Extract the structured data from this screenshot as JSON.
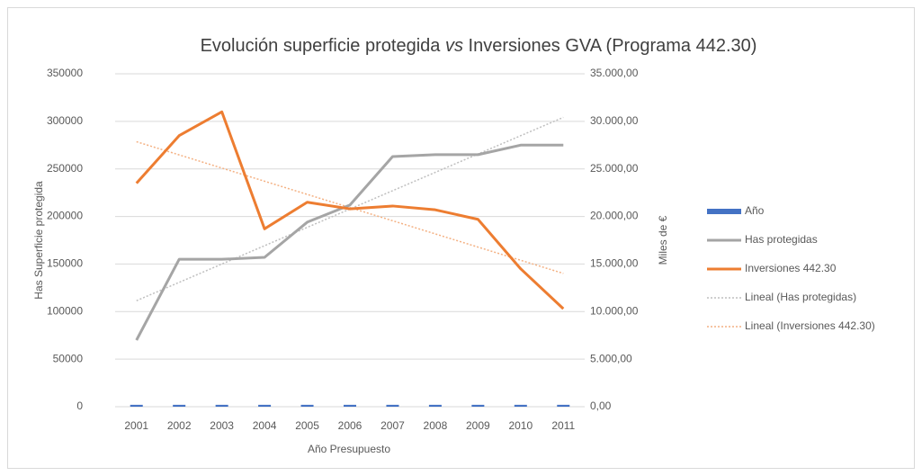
{
  "chart_data": {
    "type": "line",
    "title": {
      "before": "Evolución superficie protegida",
      "emphasis": "vs",
      "after": "Inversiones GVA (Programa 442.30)"
    },
    "x_label": "Año Presupuesto",
    "y_label": "Has Superficie protegida",
    "y2_label": "Miles de €",
    "categories": [
      "2001",
      "2002",
      "2003",
      "2004",
      "2005",
      "2006",
      "2007",
      "2008",
      "2009",
      "2010",
      "2011"
    ],
    "ylim": [
      0,
      350000
    ],
    "yticks": [
      0,
      50000,
      100000,
      150000,
      200000,
      250000,
      300000,
      350000
    ],
    "y2lim": [
      0,
      35000
    ],
    "y2ticks": [
      {
        "value": 0,
        "label": "0,00"
      },
      {
        "value": 5000,
        "label": "5.000,00"
      },
      {
        "value": 10000,
        "label": "10.000,00"
      },
      {
        "value": 15000,
        "label": "15.000,00"
      },
      {
        "value": 20000,
        "label": "20.000,00"
      },
      {
        "value": 25000,
        "label": "25.000,00"
      },
      {
        "value": 30000,
        "label": "30.000,00"
      },
      {
        "value": 35000,
        "label": "35.000,00"
      }
    ],
    "grid": true,
    "legend": "right",
    "series": [
      {
        "name": "Año",
        "type": "bar",
        "color": "#4472c4",
        "values": [
          2001,
          2002,
          2003,
          2004,
          2005,
          2006,
          2007,
          2008,
          2009,
          2010,
          2011
        ]
      },
      {
        "name": "Has protegidas",
        "type": "line",
        "color": "#a5a5a5",
        "values": [
          70000,
          155000,
          155000,
          157000,
          194000,
          212000,
          263000,
          265000,
          265000,
          275000,
          275000
        ],
        "trendline": {
          "name": "Lineal (Has protegidas)",
          "color": "#bfbfbf"
        }
      },
      {
        "name": "Inversiones 442.30",
        "type": "line",
        "axis": "y2",
        "color": "#ed7d31",
        "values": [
          23500,
          28500,
          31000,
          18700,
          21500,
          20800,
          21100,
          20700,
          19700,
          14500,
          10300
        ],
        "trendline": {
          "name": "Lineal (Inversiones 442.30)",
          "color": "#f4b183"
        }
      }
    ]
  }
}
